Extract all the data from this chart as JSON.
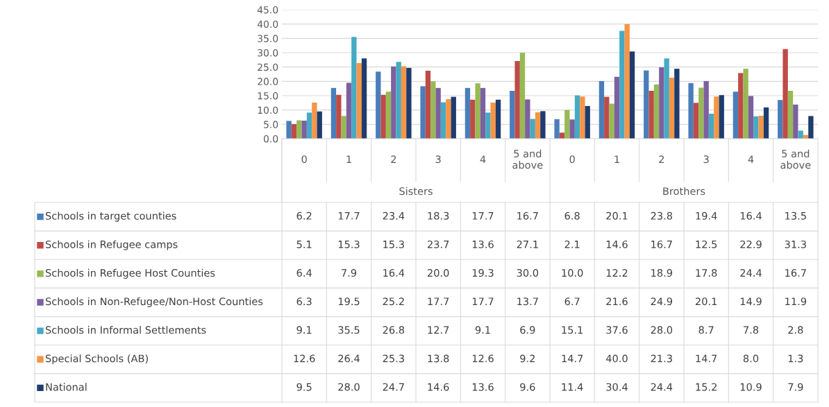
{
  "chart_data": {
    "type": "bar",
    "categories": [
      "0",
      "1",
      "2",
      "3",
      "4",
      "5 and above",
      "0",
      "1",
      "2",
      "3",
      "4",
      "5 and above"
    ],
    "annotations": [
      "Sisters",
      "Brothers"
    ],
    "series": [
      {
        "name": "Schools in target counties",
        "color": "#4a7ebb",
        "values": [
          6.2,
          17.7,
          23.4,
          18.3,
          17.7,
          16.7,
          6.8,
          20.1,
          23.8,
          19.4,
          16.4,
          13.5
        ],
        "value_labels": [
          "6.2",
          "17.7",
          "23.4",
          "18.3",
          "17.7",
          "16.7",
          "6.8",
          "20.1",
          "23.8",
          "19.4",
          "16.4",
          "13.5"
        ]
      },
      {
        "name": "Schools in Refugee camps",
        "color": "#be4b48",
        "values": [
          5.1,
          15.3,
          15.3,
          23.7,
          13.6,
          27.1,
          2.1,
          14.6,
          16.7,
          12.5,
          22.9,
          31.3
        ],
        "value_labels": [
          "5.1",
          "15.3",
          "15.3",
          "23.7",
          "13.6",
          "27.1",
          "2.1",
          "14.6",
          "16.7",
          "12.5",
          "22.9",
          "31.3"
        ]
      },
      {
        "name": "Schools in Refugee Host Counties",
        "color": "#98b954",
        "values": [
          6.4,
          7.9,
          16.4,
          20.0,
          19.3,
          30.0,
          10.0,
          12.2,
          18.9,
          17.8,
          24.4,
          16.7
        ],
        "value_labels": [
          "6.4",
          "7.9",
          "16.4",
          "20.0",
          "19.3",
          "30.0",
          "10.0",
          "12.2",
          "18.9",
          "17.8",
          "24.4",
          "16.7"
        ]
      },
      {
        "name": "Schools in Non-Refugee/Non-Host Counties",
        "color": "#7d60a0",
        "values": [
          6.3,
          19.5,
          25.2,
          17.7,
          17.7,
          13.7,
          6.7,
          21.6,
          24.9,
          20.1,
          14.9,
          11.9
        ],
        "value_labels": [
          "6.3",
          "19.5",
          "25.2",
          "17.7",
          "17.7",
          "13.7",
          "6.7",
          "21.6",
          "24.9",
          "20.1",
          "14.9",
          "11.9"
        ]
      },
      {
        "name": "Schools in Informal Settlements",
        "color": "#46aac5",
        "values": [
          9.1,
          35.5,
          26.8,
          12.7,
          9.1,
          6.9,
          15.1,
          37.6,
          28.0,
          8.7,
          7.8,
          2.8
        ],
        "value_labels": [
          "9.1",
          "35.5",
          "26.8",
          "12.7",
          "9.1",
          "6.9",
          "15.1",
          "37.6",
          "28.0",
          "8.7",
          "7.8",
          "2.8"
        ]
      },
      {
        "name": "Special Schools (AB)",
        "color": "#f69546",
        "values": [
          12.6,
          26.4,
          25.3,
          13.8,
          12.6,
          9.2,
          14.7,
          40.0,
          21.3,
          14.7,
          8.0,
          1.3
        ],
        "value_labels": [
          "12.6",
          "26.4",
          "25.3",
          "13.8",
          "12.6",
          "9.2",
          "14.7",
          "40.0",
          "21.3",
          "14.7",
          "8.0",
          "1.3"
        ]
      },
      {
        "name": "National",
        "color": "#1f3c6e",
        "values": [
          9.5,
          28.0,
          24.7,
          14.6,
          13.6,
          9.6,
          11.4,
          30.4,
          24.4,
          15.2,
          10.9,
          7.9
        ],
        "value_labels": [
          "9.5",
          "28.0",
          "24.7",
          "14.6",
          "13.6",
          "9.6",
          "11.4",
          "30.4",
          "24.4",
          "15.2",
          "10.9",
          "7.9"
        ]
      }
    ],
    "ylim": [
      0,
      45
    ],
    "yticks": [
      {
        "value": 0,
        "label": "0.0"
      },
      {
        "value": 5,
        "label": "5.0"
      },
      {
        "value": 10,
        "label": "10.0"
      },
      {
        "value": 15,
        "label": "15.0"
      },
      {
        "value": 20,
        "label": "20.0"
      },
      {
        "value": 25,
        "label": "25.0"
      },
      {
        "value": 30,
        "label": "30.0"
      },
      {
        "value": 35,
        "label": "35.0"
      },
      {
        "value": 40,
        "label": "40.0"
      },
      {
        "value": 45,
        "label": "45.0"
      }
    ],
    "grid": "y",
    "legend": "bottom"
  }
}
